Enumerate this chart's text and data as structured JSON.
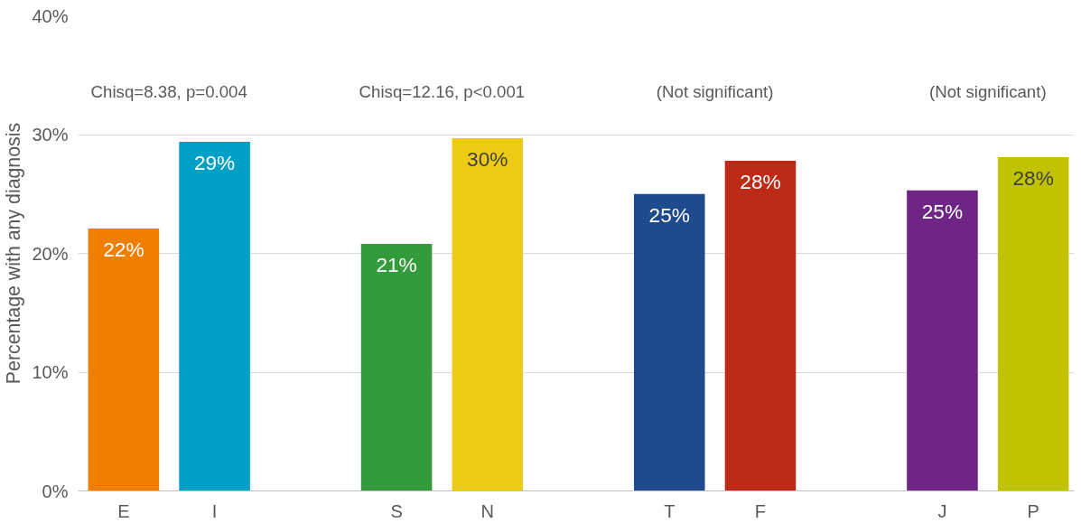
{
  "chart_data": {
    "type": "bar",
    "ylabel": "Percentage with any diagnosis",
    "categories": [
      "E",
      "I",
      null,
      "S",
      "N",
      null,
      "T",
      "F",
      null,
      "J",
      "P"
    ],
    "values": [
      22.1,
      29.4,
      null,
      20.8,
      29.7,
      null,
      25.0,
      27.8,
      null,
      25.3,
      28.1
    ],
    "colors": [
      "#f07f00",
      "#00a0c6",
      null,
      "#339b3c",
      "#eecb13",
      null,
      "#1f4b8e",
      "#be2a18",
      null,
      "#6f2585",
      "#c2c300"
    ],
    "value_labels": [
      "22%",
      "29%",
      null,
      "21%",
      "30%",
      null,
      "25%",
      "28%",
      null,
      "25%",
      "28%"
    ],
    "ylim": [
      0,
      40
    ],
    "yticks": [
      {
        "value": 0,
        "label": "0%"
      },
      {
        "value": 10,
        "label": "10%"
      },
      {
        "value": 20,
        "label": "20%"
      },
      {
        "value": 30,
        "label": "30%"
      },
      {
        "value": 40,
        "label": "40%"
      }
    ],
    "grid": "y",
    "annotations": [
      "Chisq=8.38, p=0.004",
      "Chisq=12.16, p<0.001",
      "(Not significant)",
      "(Not significant)"
    ]
  }
}
